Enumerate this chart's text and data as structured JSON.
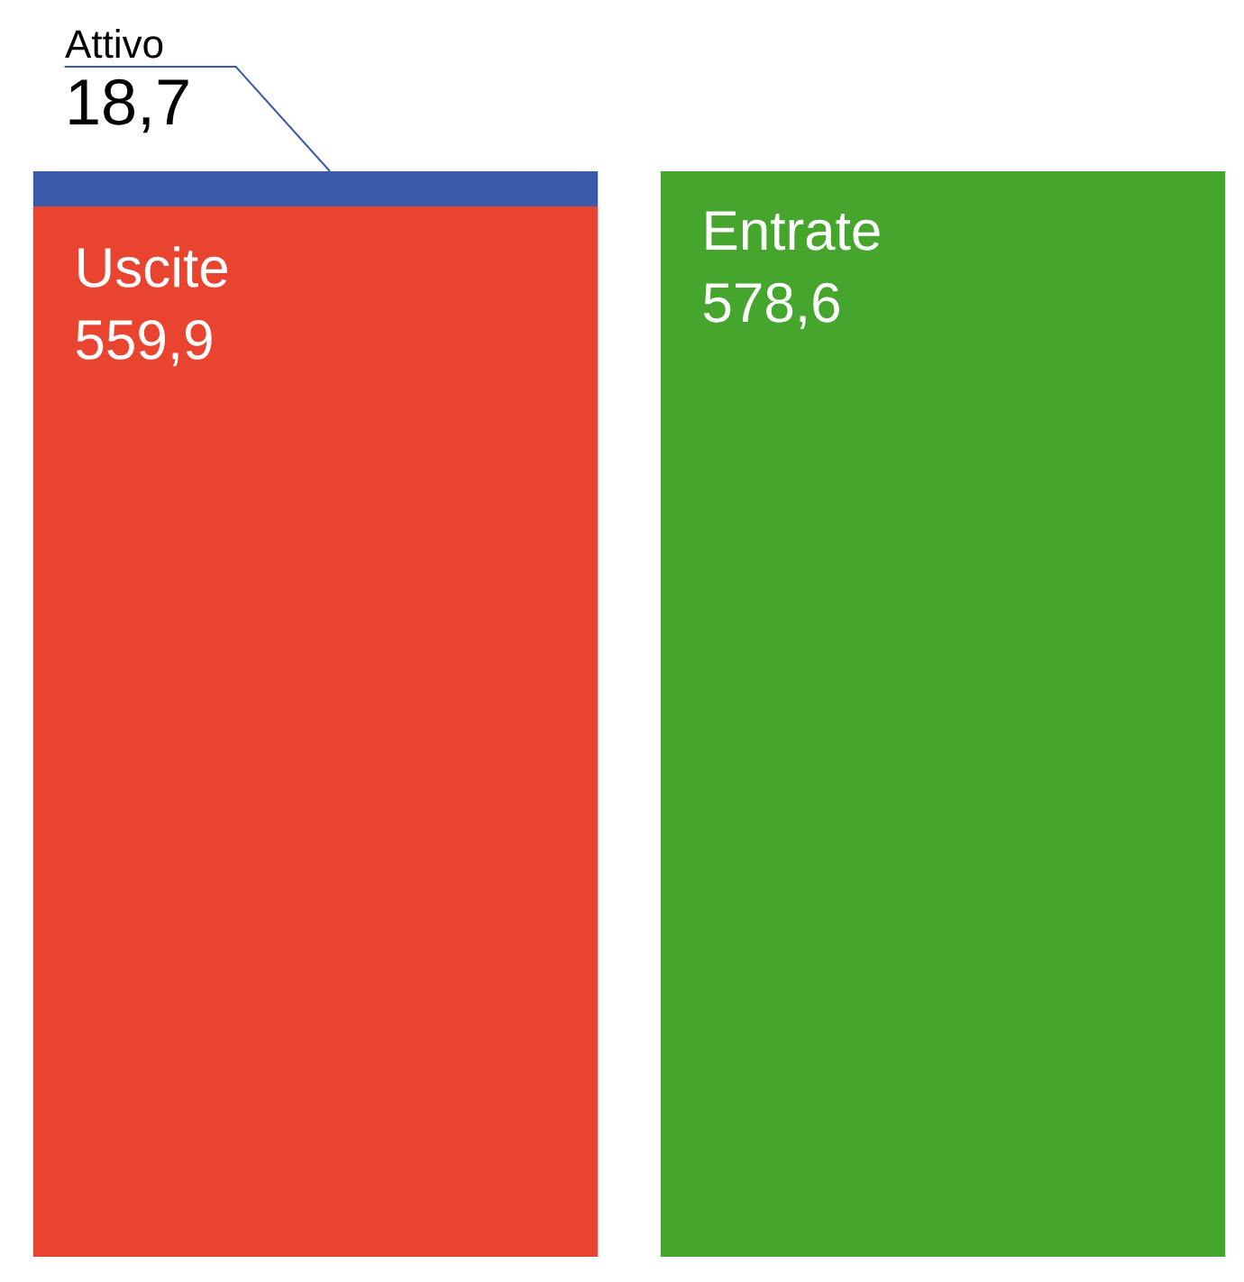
{
  "chart_data": {
    "type": "bar",
    "stacked": true,
    "categories": [
      null,
      null
    ],
    "series": [
      {
        "name": "Uscite",
        "color": "#e84430",
        "values": [
          559.9,
          null
        ],
        "value_labels": [
          "559,9",
          null
        ]
      },
      {
        "name": "Attivo",
        "color": "#3a5ca8",
        "values": [
          18.7,
          null
        ],
        "value_labels": [
          "18,7",
          null
        ]
      },
      {
        "name": "Entrate",
        "color": "#45a52c",
        "values": [
          null,
          578.6
        ],
        "value_labels": [
          null,
          "578,6"
        ]
      }
    ]
  }
}
